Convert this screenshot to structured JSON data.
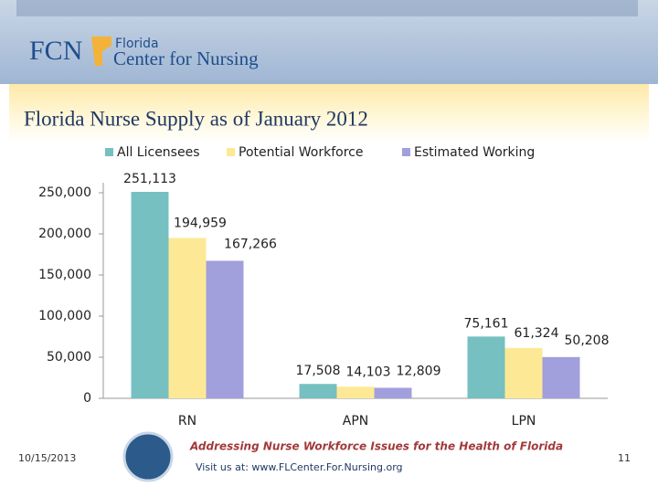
{
  "slide": {
    "logo_abbr": "FCN",
    "logo_line1": "Florida",
    "logo_line2": "Center for Nursing",
    "date": "10/15/2013",
    "tagline": "Addressing Nurse Workforce Issues for the Health of Florida",
    "url": "Visit us at: www.FLCenter.For.Nursing.org",
    "page": "11"
  },
  "chart_data": {
    "type": "bar",
    "title": "Florida Nurse Supply as of January 2012",
    "categories": [
      "RN",
      "APN",
      "LPN"
    ],
    "series": [
      {
        "name": "All Licensees",
        "color": "#76c0c1",
        "values": [
          251113,
          17508,
          75161
        ],
        "value_labels": [
          "251,113",
          "17,508",
          "75,161"
        ]
      },
      {
        "name": "Potential Workforce",
        "color": "#fde995",
        "values": [
          194959,
          14103,
          61324
        ],
        "value_labels": [
          "194,959",
          "14,103",
          "61,324"
        ]
      },
      {
        "name": "Estimated Working",
        "color": "#a19fdc",
        "values": [
          167266,
          12809,
          50208
        ],
        "value_labels": [
          "167,266",
          "12,809",
          "50,208"
        ]
      }
    ],
    "ylim": [
      0,
      260000
    ],
    "yticks": [
      {
        "value": 0,
        "label": "0"
      },
      {
        "value": 50000,
        "label": "50,000"
      },
      {
        "value": 100000,
        "label": "100,000"
      },
      {
        "value": 150000,
        "label": "150,000"
      },
      {
        "value": 200000,
        "label": "200,000"
      },
      {
        "value": 250000,
        "label": "250,000"
      }
    ],
    "grid": false,
    "legend": "top"
  }
}
